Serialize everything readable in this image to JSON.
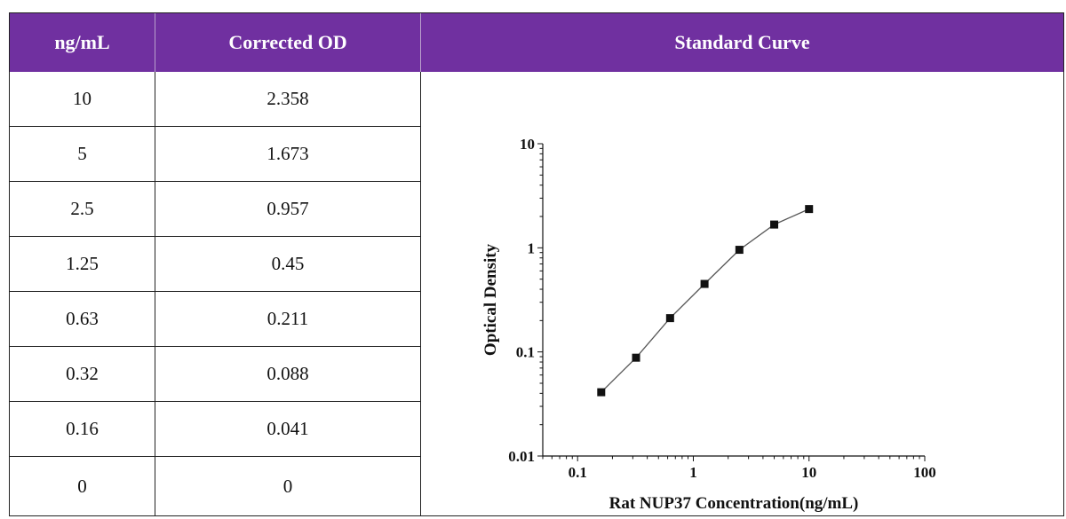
{
  "table": {
    "headers": [
      "ng/mL",
      "Corrected OD",
      "Standard Curve"
    ],
    "rows": [
      {
        "conc": "10",
        "od": "2.358"
      },
      {
        "conc": "5",
        "od": "1.673"
      },
      {
        "conc": "2.5",
        "od": "0.957"
      },
      {
        "conc": "1.25",
        "od": "0.45"
      },
      {
        "conc": "0.63",
        "od": "0.211"
      },
      {
        "conc": "0.32",
        "od": "0.088"
      },
      {
        "conc": "0.16",
        "od": "0.041"
      },
      {
        "conc": "0",
        "od": "0"
      }
    ]
  },
  "colors": {
    "header_bg": "#7030a0",
    "header_text": "#ffffff",
    "curve": "#555555",
    "marker": "#111111"
  },
  "chart_data": {
    "type": "scatter",
    "title": "",
    "xlabel": "Rat NUP37 Concentration(ng/mL)",
    "ylabel": "Optical Density",
    "x_scale": "log",
    "y_scale": "log",
    "xlim": [
      0.05,
      100
    ],
    "ylim": [
      0.01,
      10
    ],
    "x_ticks": [
      0.1,
      1,
      10,
      100
    ],
    "x_tick_labels": [
      "0.1",
      "1",
      "10",
      "100"
    ],
    "y_ticks": [
      0.01,
      0.1,
      1,
      10
    ],
    "y_tick_labels": [
      "0.01",
      "0.1",
      "1",
      "10"
    ],
    "grid": false,
    "series": [
      {
        "x": [
          0.16,
          0.32,
          0.63,
          1.25,
          2.5,
          5,
          10
        ],
        "y": [
          0.041,
          0.088,
          0.211,
          0.45,
          0.957,
          1.673,
          2.358
        ]
      }
    ]
  }
}
